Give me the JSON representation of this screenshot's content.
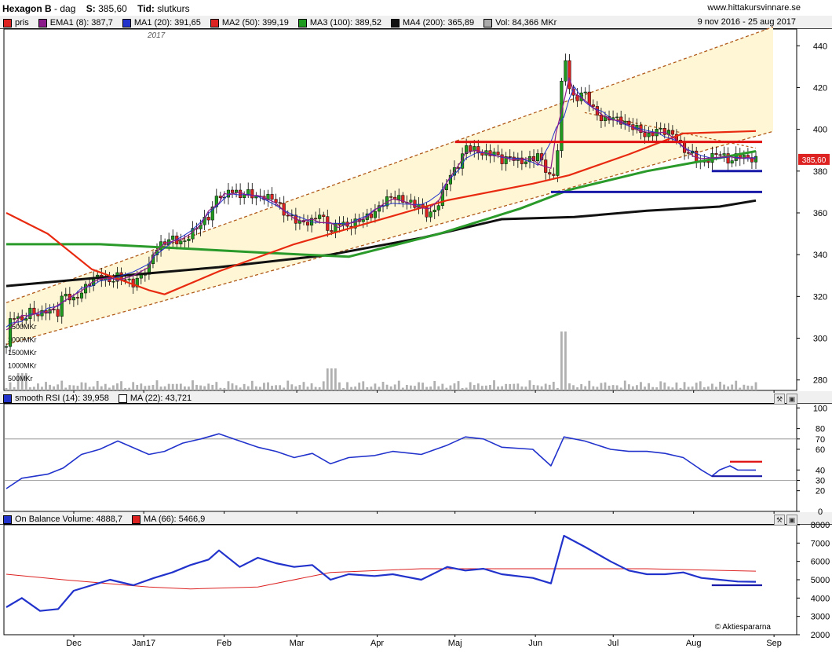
{
  "header": {
    "name": "Hexagon B",
    "period": "dag",
    "s_label": "S:",
    "s_value": "385,60",
    "tid_label": "Tid:",
    "tid_value": "slutkurs",
    "site": "www.hittakursvinnare.se"
  },
  "legend_main": [
    {
      "label": "pris",
      "color": "#dd2222"
    },
    {
      "label": "EMA1 (8): 387,7",
      "color": "#8b1a8b"
    },
    {
      "label": "MA1 (20): 391,65",
      "color": "#2233cc"
    },
    {
      "label": "MA2 (50): 399,19",
      "color": "#dd2222"
    },
    {
      "label": "MA3 (100): 389,52",
      "color": "#1e9a1e"
    },
    {
      "label": "MA4 (200): 365,89",
      "color": "#111111"
    },
    {
      "label": "Vol: 84,366 MKr",
      "color": "#aaaaaa"
    }
  ],
  "date_range": "9 nov 2016 - 25 aug 2017",
  "year_label": "2017",
  "last_price_tag": "385,60",
  "legend_rsi": [
    {
      "label": "smooth RSI (14): 39,958",
      "color": "#2233cc"
    },
    {
      "label": "MA (22): 43,721",
      "color": "#ffffff"
    }
  ],
  "legend_obv": [
    {
      "label": "On Balance Volume: 4888,7",
      "color": "#2233cc"
    },
    {
      "label": "MA (66): 5466,9",
      "color": "#dd2222"
    }
  ],
  "watermark": "© Aktiespararna",
  "colors": {
    "up": "#1e9a1e",
    "down": "#dd2222",
    "ma_red": "#e82a10",
    "ma_green": "#2a9a2a",
    "ma_black": "#111111",
    "ma_blue": "#2233cc",
    "ema": "#8b1a8b",
    "channel_fill": "#fff6d6"
  },
  "chart_data": [
    {
      "type": "candlestick",
      "title": "Hexagon B",
      "x_tick_labels": [
        "Dec",
        "Jan17",
        "Feb",
        "Mar",
        "Apr",
        "Maj",
        "Jun",
        "Jul",
        "Aug",
        "Sep"
      ],
      "y_ticks": [
        280,
        300,
        320,
        340,
        360,
        380,
        400,
        420,
        440
      ],
      "ylim": [
        275,
        448
      ],
      "volume_tick_labels": [
        "500MKr",
        "1000MKr",
        "1500MKr",
        "2000MKr",
        "2500MKr"
      ],
      "close_path": [
        [
          "2016-11-09",
          296
        ],
        [
          "2016-11-11",
          312
        ],
        [
          "2016-11-15",
          308
        ],
        [
          "2016-11-18",
          313
        ],
        [
          "2016-11-22",
          311
        ],
        [
          "2016-11-25",
          314
        ],
        [
          "2016-11-29",
          312
        ],
        [
          "2016-12-01",
          322
        ],
        [
          "2016-12-05",
          318
        ],
        [
          "2016-12-08",
          322
        ],
        [
          "2016-12-12",
          328
        ],
        [
          "2016-12-15",
          330
        ],
        [
          "2016-12-19",
          327
        ],
        [
          "2016-12-22",
          330
        ],
        [
          "2016-12-28",
          326
        ],
        [
          "2017-01-03",
          334
        ],
        [
          "2017-01-05",
          342
        ],
        [
          "2017-01-09",
          346
        ],
        [
          "2017-01-12",
          348
        ],
        [
          "2017-01-16",
          345
        ],
        [
          "2017-01-19",
          350
        ],
        [
          "2017-01-23",
          355
        ],
        [
          "2017-01-26",
          358
        ],
        [
          "2017-01-30",
          370
        ],
        [
          "2017-02-01",
          366
        ],
        [
          "2017-02-03",
          372
        ],
        [
          "2017-02-07",
          368
        ],
        [
          "2017-02-10",
          370
        ],
        [
          "2017-02-14",
          367
        ],
        [
          "2017-02-17",
          368
        ],
        [
          "2017-02-21",
          366
        ],
        [
          "2017-02-24",
          360
        ],
        [
          "2017-02-28",
          357
        ],
        [
          "2017-03-03",
          355
        ],
        [
          "2017-03-07",
          356
        ],
        [
          "2017-03-10",
          360
        ],
        [
          "2017-03-14",
          350
        ],
        [
          "2017-03-17",
          356
        ],
        [
          "2017-03-21",
          353
        ],
        [
          "2017-03-24",
          356
        ],
        [
          "2017-03-28",
          358
        ],
        [
          "2017-03-31",
          360
        ],
        [
          "2017-04-04",
          366
        ],
        [
          "2017-04-07",
          368
        ],
        [
          "2017-04-11",
          366
        ],
        [
          "2017-04-18",
          363
        ],
        [
          "2017-04-21",
          358
        ],
        [
          "2017-04-25",
          365
        ],
        [
          "2017-04-28",
          376
        ],
        [
          "2017-05-03",
          384
        ],
        [
          "2017-05-05",
          392
        ],
        [
          "2017-05-09",
          390
        ],
        [
          "2017-05-12",
          388
        ],
        [
          "2017-05-16",
          389
        ],
        [
          "2017-05-19",
          385
        ],
        [
          "2017-05-23",
          387
        ],
        [
          "2017-05-26",
          384
        ],
        [
          "2017-05-31",
          386
        ],
        [
          "2017-06-02",
          388
        ],
        [
          "2017-06-07",
          376
        ],
        [
          "2017-06-09",
          380
        ],
        [
          "2017-06-12",
          440
        ],
        [
          "2017-06-14",
          420
        ],
        [
          "2017-06-16",
          414
        ],
        [
          "2017-06-20",
          418
        ],
        [
          "2017-06-23",
          410
        ],
        [
          "2017-06-27",
          404
        ],
        [
          "2017-06-30",
          406
        ],
        [
          "2017-07-04",
          404
        ],
        [
          "2017-07-07",
          402
        ],
        [
          "2017-07-11",
          400
        ],
        [
          "2017-07-14",
          396
        ],
        [
          "2017-07-18",
          400
        ],
        [
          "2017-07-21",
          399
        ],
        [
          "2017-07-25",
          397
        ],
        [
          "2017-07-28",
          390
        ],
        [
          "2017-08-01",
          388
        ],
        [
          "2017-08-04",
          383
        ],
        [
          "2017-08-08",
          387
        ],
        [
          "2017-08-11",
          389
        ],
        [
          "2017-08-15",
          384
        ],
        [
          "2017-08-18",
          388
        ],
        [
          "2017-08-22",
          386
        ],
        [
          "2017-08-25",
          385.6
        ]
      ],
      "ma50_path": [
        [
          "2016-11-09",
          360
        ],
        [
          "2016-11-25",
          350
        ],
        [
          "2016-12-12",
          333
        ],
        [
          "2017-01-03",
          323
        ],
        [
          "2017-01-09",
          321
        ],
        [
          "2017-01-30",
          332
        ],
        [
          "2017-02-28",
          345
        ],
        [
          "2017-03-31",
          356
        ],
        [
          "2017-04-28",
          366
        ],
        [
          "2017-05-31",
          374
        ],
        [
          "2017-06-14",
          378
        ],
        [
          "2017-07-07",
          388
        ],
        [
          "2017-07-28",
          398
        ],
        [
          "2017-08-25",
          399.19
        ]
      ],
      "ma100_path": [
        [
          "2016-11-09",
          345
        ],
        [
          "2016-12-15",
          345
        ],
        [
          "2017-01-16",
          343
        ],
        [
          "2017-02-15",
          341
        ],
        [
          "2017-03-21",
          339
        ],
        [
          "2017-04-25",
          350
        ],
        [
          "2017-05-26",
          362
        ],
        [
          "2017-06-14",
          371
        ],
        [
          "2017-07-14",
          380
        ],
        [
          "2017-08-25",
          389.52
        ]
      ],
      "ma200_path": [
        [
          "2016-11-09",
          325
        ],
        [
          "2016-12-15",
          329
        ],
        [
          "2017-01-30",
          334
        ],
        [
          "2017-03-14",
          340
        ],
        [
          "2017-04-18",
          348
        ],
        [
          "2017-05-19",
          357
        ],
        [
          "2017-06-16",
          358
        ],
        [
          "2017-07-14",
          361
        ],
        [
          "2017-08-11",
          363
        ],
        [
          "2017-08-25",
          365.89
        ]
      ],
      "horizontal_lines": [
        {
          "color": "red",
          "y": 394,
          "from": "2017-05-01",
          "to": "2017-08-25"
        },
        {
          "color": "blue",
          "y": 370,
          "from": "2017-06-07",
          "to": "2017-08-25"
        },
        {
          "color": "blue",
          "y": 380,
          "from": "2017-08-08",
          "to": "2017-08-25"
        }
      ]
    },
    {
      "type": "line",
      "title": "smooth RSI (14)",
      "y_ticks": [
        0,
        20,
        30,
        40,
        60,
        70,
        80,
        100
      ],
      "ylim": [
        0,
        104
      ],
      "reference_lines": [
        30,
        70
      ],
      "series": [
        {
          "name": "smooth RSI (14)",
          "points": [
            [
              "2016-11-09",
              22
            ],
            [
              "2016-11-15",
              32
            ],
            [
              "2016-11-25",
              36
            ],
            [
              "2016-12-01",
              42
            ],
            [
              "2016-12-08",
              55
            ],
            [
              "2016-12-15",
              60
            ],
            [
              "2016-12-22",
              68
            ],
            [
              "2017-01-03",
              55
            ],
            [
              "2017-01-09",
              58
            ],
            [
              "2017-01-16",
              66
            ],
            [
              "2017-01-23",
              70
            ],
            [
              "2017-01-30",
              75
            ],
            [
              "2017-02-07",
              68
            ],
            [
              "2017-02-14",
              62
            ],
            [
              "2017-02-21",
              58
            ],
            [
              "2017-02-28",
              52
            ],
            [
              "2017-03-07",
              56
            ],
            [
              "2017-03-14",
              46
            ],
            [
              "2017-03-21",
              52
            ],
            [
              "2017-03-31",
              54
            ],
            [
              "2017-04-07",
              58
            ],
            [
              "2017-04-18",
              55
            ],
            [
              "2017-04-28",
              64
            ],
            [
              "2017-05-05",
              72
            ],
            [
              "2017-05-12",
              70
            ],
            [
              "2017-05-19",
              62
            ],
            [
              "2017-05-31",
              60
            ],
            [
              "2017-06-07",
              44
            ],
            [
              "2017-06-12",
              72
            ],
            [
              "2017-06-20",
              68
            ],
            [
              "2017-06-30",
              60
            ],
            [
              "2017-07-07",
              58
            ],
            [
              "2017-07-14",
              58
            ],
            [
              "2017-07-21",
              56
            ],
            [
              "2017-07-28",
              52
            ],
            [
              "2017-08-04",
              40
            ],
            [
              "2017-08-08",
              34
            ],
            [
              "2017-08-11",
              40
            ],
            [
              "2017-08-15",
              44
            ],
            [
              "2017-08-18",
              40
            ],
            [
              "2017-08-25",
              39.958
            ]
          ]
        }
      ],
      "horizontal_lines": [
        {
          "color": "red",
          "y": 48,
          "from": "2017-08-15",
          "to": "2017-08-25"
        },
        {
          "color": "blue",
          "y": 34,
          "from": "2017-08-08",
          "to": "2017-08-25"
        }
      ]
    },
    {
      "type": "line",
      "title": "On Balance Volume",
      "y_ticks": [
        2000,
        3000,
        4000,
        5000,
        6000,
        7000,
        8000
      ],
      "ylim": [
        2000,
        8000
      ],
      "series": [
        {
          "name": "On Balance Volume",
          "points": [
            [
              "2016-11-09",
              3500
            ],
            [
              "2016-11-15",
              4000
            ],
            [
              "2016-11-22",
              3300
            ],
            [
              "2016-11-29",
              3400
            ],
            [
              "2016-12-05",
              4400
            ],
            [
              "2016-12-12",
              4700
            ],
            [
              "2016-12-19",
              5000
            ],
            [
              "2016-12-28",
              4700
            ],
            [
              "2017-01-05",
              5100
            ],
            [
              "2017-01-12",
              5400
            ],
            [
              "2017-01-19",
              5800
            ],
            [
              "2017-01-26",
              6100
            ],
            [
              "2017-01-30",
              6600
            ],
            [
              "2017-02-07",
              5700
            ],
            [
              "2017-02-14",
              6200
            ],
            [
              "2017-02-21",
              5900
            ],
            [
              "2017-02-28",
              5700
            ],
            [
              "2017-03-07",
              5800
            ],
            [
              "2017-03-14",
              5000
            ],
            [
              "2017-03-21",
              5300
            ],
            [
              "2017-03-31",
              5200
            ],
            [
              "2017-04-07",
              5300
            ],
            [
              "2017-04-18",
              5000
            ],
            [
              "2017-04-28",
              5700
            ],
            [
              "2017-05-05",
              5500
            ],
            [
              "2017-05-12",
              5600
            ],
            [
              "2017-05-19",
              5300
            ],
            [
              "2017-05-31",
              5100
            ],
            [
              "2017-06-07",
              4800
            ],
            [
              "2017-06-12",
              7400
            ],
            [
              "2017-06-20",
              6800
            ],
            [
              "2017-06-30",
              6000
            ],
            [
              "2017-07-07",
              5500
            ],
            [
              "2017-07-14",
              5300
            ],
            [
              "2017-07-21",
              5300
            ],
            [
              "2017-07-28",
              5400
            ],
            [
              "2017-08-04",
              5100
            ],
            [
              "2017-08-11",
              5000
            ],
            [
              "2017-08-18",
              4900
            ],
            [
              "2017-08-25",
              4888.7
            ]
          ]
        },
        {
          "name": "MA (66)",
          "points": [
            [
              "2016-11-09",
              5300
            ],
            [
              "2016-12-01",
              5000
            ],
            [
              "2017-01-03",
              4600
            ],
            [
              "2017-01-19",
              4500
            ],
            [
              "2017-02-14",
              4600
            ],
            [
              "2017-03-14",
              5400
            ],
            [
              "2017-04-18",
              5600
            ],
            [
              "2017-05-19",
              5600
            ],
            [
              "2017-06-16",
              5600
            ],
            [
              "2017-07-14",
              5600
            ],
            [
              "2017-08-25",
              5466.9
            ]
          ]
        }
      ],
      "horizontal_lines": [
        {
          "color": "blue",
          "y": 4700,
          "from": "2017-08-08",
          "to": "2017-08-25"
        }
      ]
    }
  ]
}
